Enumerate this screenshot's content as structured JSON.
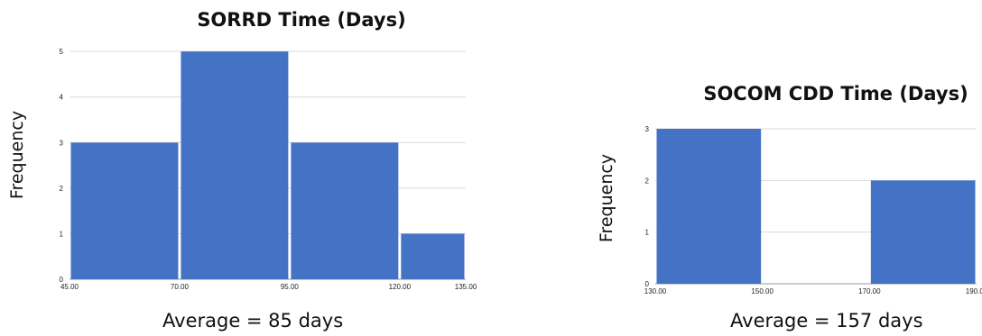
{
  "chart_data": [
    {
      "type": "bar",
      "title": "SORRD Time (Days)",
      "xlabel": "",
      "ylabel": "Frequency",
      "x_ticks": [
        "45.00",
        "70.00",
        "95.00",
        "120.00",
        "135.00"
      ],
      "y_ticks": [
        "0",
        "1",
        "2",
        "3",
        "4",
        "5"
      ],
      "bins": [
        {
          "start": 45,
          "end": 70,
          "value": 3
        },
        {
          "start": 70,
          "end": 95,
          "value": 5
        },
        {
          "start": 95,
          "end": 120,
          "value": 3
        },
        {
          "start": 120,
          "end": 135,
          "value": 1
        }
      ],
      "xlim": [
        45,
        135
      ],
      "ylim": [
        0,
        5.2
      ],
      "grid": true,
      "color": "#4472C4",
      "note": "Average = 85 days"
    },
    {
      "type": "bar",
      "title": "SOCOM CDD Time (Days)",
      "xlabel": "",
      "ylabel": "Frequency",
      "x_ticks": [
        "130.00",
        "150.00",
        "170.00",
        "190.00"
      ],
      "y_ticks": [
        "0",
        "1",
        "2",
        "3"
      ],
      "bins": [
        {
          "start": 130,
          "end": 150,
          "value": 3
        },
        {
          "start": 150,
          "end": 170,
          "value": 0
        },
        {
          "start": 170,
          "end": 190,
          "value": 2
        }
      ],
      "xlim": [
        130,
        190
      ],
      "ylim": [
        0,
        3
      ],
      "grid": true,
      "color": "#4472C4",
      "note": "Average = 157 days"
    }
  ]
}
